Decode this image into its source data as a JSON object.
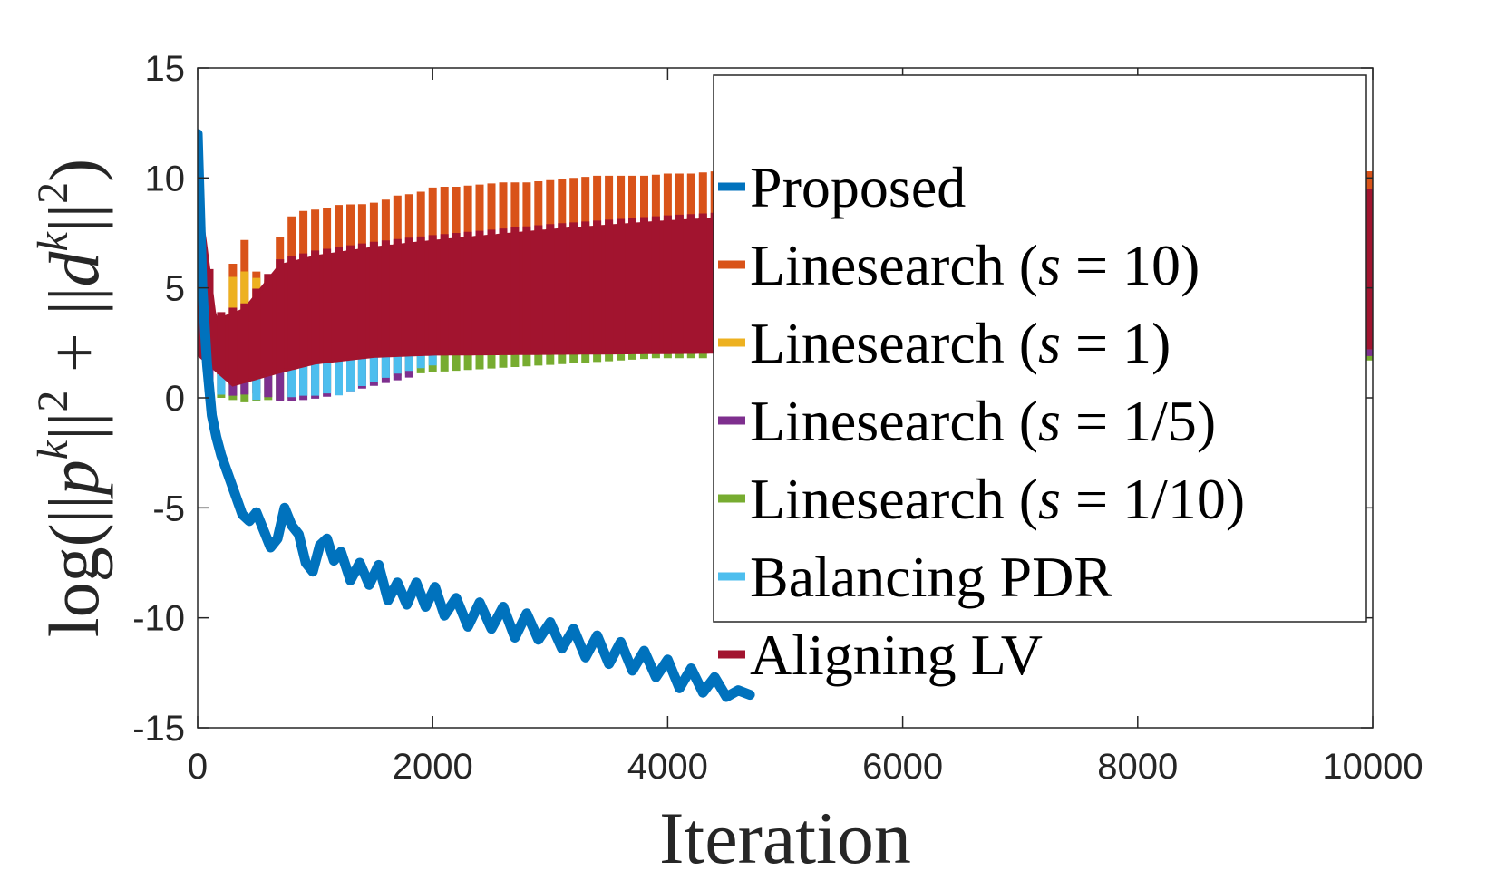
{
  "chart_data": {
    "type": "line",
    "xlabel": "Iteration",
    "ylabel": "log(||p^k||^2 + ||d^k||^2)",
    "xlim": [
      0,
      10000
    ],
    "ylim": [
      -15,
      15
    ],
    "xticks": [
      0,
      2000,
      4000,
      6000,
      8000,
      10000
    ],
    "xtick_labels": [
      "0",
      "2000",
      "4000",
      "6000",
      "8000",
      "10000"
    ],
    "yticks": [
      15,
      10,
      5,
      0,
      -5,
      -10,
      -15
    ],
    "ytick_labels": [
      "15",
      "10",
      "5",
      "0",
      "-5",
      "-10",
      "-15"
    ],
    "grid": false,
    "legend_position": "top-right",
    "series": [
      {
        "name": "Proposed",
        "color": "#0072BD",
        "style": "smooth",
        "x": [
          0,
          40,
          80,
          120,
          160,
          200,
          260,
          320,
          380,
          440,
          500,
          560,
          620,
          680,
          740,
          800,
          860,
          920,
          980,
          1040,
          1100,
          1160,
          1220,
          1300,
          1380,
          1460,
          1540,
          1620,
          1700,
          1780,
          1860,
          1940,
          2020,
          2100,
          2200,
          2300,
          2400,
          2500,
          2600,
          2700,
          2800,
          2900,
          3000,
          3100,
          3200,
          3300,
          3400,
          3500,
          3600,
          3700,
          3800,
          3900,
          4000,
          4100,
          4200,
          4300,
          4400,
          4500,
          4600,
          4700
        ],
        "y": [
          12,
          5,
          1.5,
          -0.8,
          -1.8,
          -2.6,
          -3.5,
          -4.4,
          -5.3,
          -5.6,
          -5.2,
          -6.0,
          -6.8,
          -6.4,
          -5.0,
          -5.8,
          -6.2,
          -7.5,
          -7.9,
          -6.7,
          -6.4,
          -7.4,
          -7.0,
          -8.3,
          -7.5,
          -8.5,
          -7.6,
          -9.2,
          -8.4,
          -9.4,
          -8.4,
          -9.5,
          -8.6,
          -9.9,
          -9.1,
          -10.4,
          -9.3,
          -10.5,
          -9.5,
          -10.9,
          -9.8,
          -11.0,
          -10.2,
          -11.4,
          -10.5,
          -11.8,
          -10.8,
          -12.1,
          -11.1,
          -12.4,
          -11.5,
          -12.7,
          -11.9,
          -13.2,
          -12.3,
          -13.4,
          -12.7,
          -13.6,
          -13.3,
          -13.5
        ]
      },
      {
        "name": "Linesearch (s = 10)",
        "color": "#D95319",
        "style": "spikes",
        "points": [
          [
            0,
            10.1
          ],
          [
            30,
            5.5
          ],
          [
            180,
            3.2
          ],
          [
            300,
            6.1
          ],
          [
            420,
            7.4
          ],
          [
            560,
            4.5
          ],
          [
            740,
            8.1
          ],
          [
            900,
            8.5
          ],
          [
            1060,
            8.6
          ],
          [
            1220,
            8.8
          ],
          [
            1380,
            8.8
          ],
          [
            1540,
            8.9
          ],
          [
            1700,
            9.2
          ],
          [
            1860,
            9.3
          ],
          [
            2020,
            9.6
          ],
          [
            2200,
            9.6
          ],
          [
            2400,
            9.7
          ],
          [
            2600,
            9.8
          ],
          [
            2800,
            9.8
          ],
          [
            3000,
            9.9
          ],
          [
            3200,
            10.0
          ],
          [
            3400,
            10.1
          ],
          [
            3600,
            10.1
          ],
          [
            3800,
            10.1
          ],
          [
            4000,
            10.2
          ],
          [
            4200,
            10.2
          ],
          [
            4400,
            10.3
          ]
        ],
        "end_segment": [
          10000,
          2.2,
          10.3
        ]
      },
      {
        "name": "Linesearch (s = 1)",
        "color": "#EDB120",
        "style": "spikes",
        "points": [
          [
            0,
            9.8
          ],
          [
            30,
            5.5
          ],
          [
            180,
            3.0
          ],
          [
            300,
            5.5
          ],
          [
            420,
            5.8
          ],
          [
            560,
            5.2
          ],
          [
            740,
            6.0
          ],
          [
            900,
            6.3
          ],
          [
            1060,
            6.5
          ],
          [
            1220,
            6.7
          ],
          [
            1380,
            6.8
          ],
          [
            1540,
            6.9
          ],
          [
            1700,
            7.0
          ],
          [
            1860,
            7.1
          ],
          [
            2020,
            7.2
          ],
          [
            2200,
            7.3
          ],
          [
            2400,
            7.4
          ],
          [
            2600,
            7.5
          ],
          [
            2800,
            7.6
          ],
          [
            3000,
            7.7
          ],
          [
            3200,
            7.8
          ],
          [
            3400,
            7.9
          ],
          [
            3600,
            8.0
          ],
          [
            3800,
            8.1
          ],
          [
            4000,
            8.2
          ],
          [
            4200,
            8.3
          ],
          [
            4400,
            8.4
          ]
        ],
        "end_segment": [
          10000,
          2.2,
          9.3
        ]
      },
      {
        "name": "Linesearch (s = 1/5)",
        "color": "#7E2F8E",
        "style": "dips",
        "points": [
          [
            0,
            9.6
          ],
          [
            100,
            0.4
          ],
          [
            300,
            0.1
          ],
          [
            500,
            0.2
          ],
          [
            740,
            -0.2
          ],
          [
            900,
            -0.1
          ],
          [
            1060,
            0.0
          ],
          [
            1220,
            0.2
          ],
          [
            1380,
            0.4
          ],
          [
            1540,
            0.6
          ],
          [
            1700,
            0.8
          ],
          [
            1860,
            1.0
          ]
        ],
        "end_segment": [
          10000,
          1.9,
          9.5
        ]
      },
      {
        "name": "Linesearch (s = 1/10)",
        "color": "#77AC30",
        "style": "dips",
        "points": [
          [
            0,
            2.0
          ],
          [
            60,
            0.1
          ],
          [
            200,
            0.0
          ],
          [
            400,
            -0.2
          ],
          [
            560,
            -0.1
          ],
          [
            740,
            -0.1
          ],
          [
            900,
            0.1
          ],
          [
            1060,
            0.3
          ],
          [
            1220,
            0.5
          ],
          [
            1380,
            0.7
          ],
          [
            1540,
            0.9
          ],
          [
            1700,
            1.0
          ],
          [
            1860,
            1.1
          ],
          [
            2100,
            1.2
          ],
          [
            2400,
            1.3
          ],
          [
            2700,
            1.4
          ],
          [
            3000,
            1.5
          ],
          [
            3300,
            1.6
          ],
          [
            3600,
            1.7
          ],
          [
            3900,
            1.8
          ],
          [
            4300,
            1.8
          ]
        ],
        "end_segment": [
          10000,
          1.7,
          8.5
        ]
      },
      {
        "name": "Balancing PDR",
        "color": "#4DBEEE",
        "style": "dips",
        "points": [
          [
            0,
            9.7
          ],
          [
            150,
            0.3
          ],
          [
            280,
            -0.1
          ],
          [
            360,
            4.8
          ],
          [
            420,
            -0.2
          ],
          [
            560,
            0.0
          ],
          [
            700,
            5.6
          ],
          [
            760,
            0.0
          ],
          [
            900,
            0.1
          ],
          [
            1000,
            0.1
          ],
          [
            1100,
            0.2
          ],
          [
            1220,
            0.1
          ],
          [
            1380,
            0.5
          ],
          [
            1540,
            0.8
          ],
          [
            1700,
            1.1
          ],
          [
            1860,
            1.3
          ],
          [
            2020,
            1.5
          ]
        ],
        "end_segment": [
          10000,
          2.2,
          8.5
        ]
      },
      {
        "name": "Aligning LV",
        "color": "#A2142F",
        "style": "band",
        "band_low": [
          [
            0,
            2.0
          ],
          [
            300,
            0.6
          ],
          [
            700,
            1.2
          ],
          [
            1000,
            1.6
          ],
          [
            1500,
            1.9
          ],
          [
            2000,
            2.0
          ],
          [
            4700,
            2.1
          ]
        ],
        "band_high": [
          [
            0,
            9.3
          ],
          [
            60,
            7.2
          ],
          [
            150,
            3.5
          ],
          [
            400,
            4.0
          ],
          [
            700,
            6.0
          ],
          [
            1000,
            6.4
          ],
          [
            1500,
            6.8
          ],
          [
            2000,
            7.1
          ],
          [
            3000,
            7.6
          ],
          [
            4000,
            8.0
          ],
          [
            4700,
            8.2
          ]
        ],
        "end_segment": [
          10000,
          2.2,
          9.5
        ]
      }
    ]
  },
  "legend": {
    "items": [
      {
        "label": "Proposed",
        "color": "#0072BD"
      },
      {
        "label": "Linesearch (s = 10)",
        "color": "#D95319"
      },
      {
        "label": "Linesearch (s = 1)",
        "color": "#EDB120"
      },
      {
        "label": "Linesearch (s = 1/5)",
        "color": "#7E2F8E"
      },
      {
        "label": "Linesearch (s = 1/10)",
        "color": "#77AC30"
      },
      {
        "label": "Balancing PDR",
        "color": "#4DBEEE"
      },
      {
        "label": "Aligning LV",
        "color": "#A2142F"
      }
    ]
  }
}
